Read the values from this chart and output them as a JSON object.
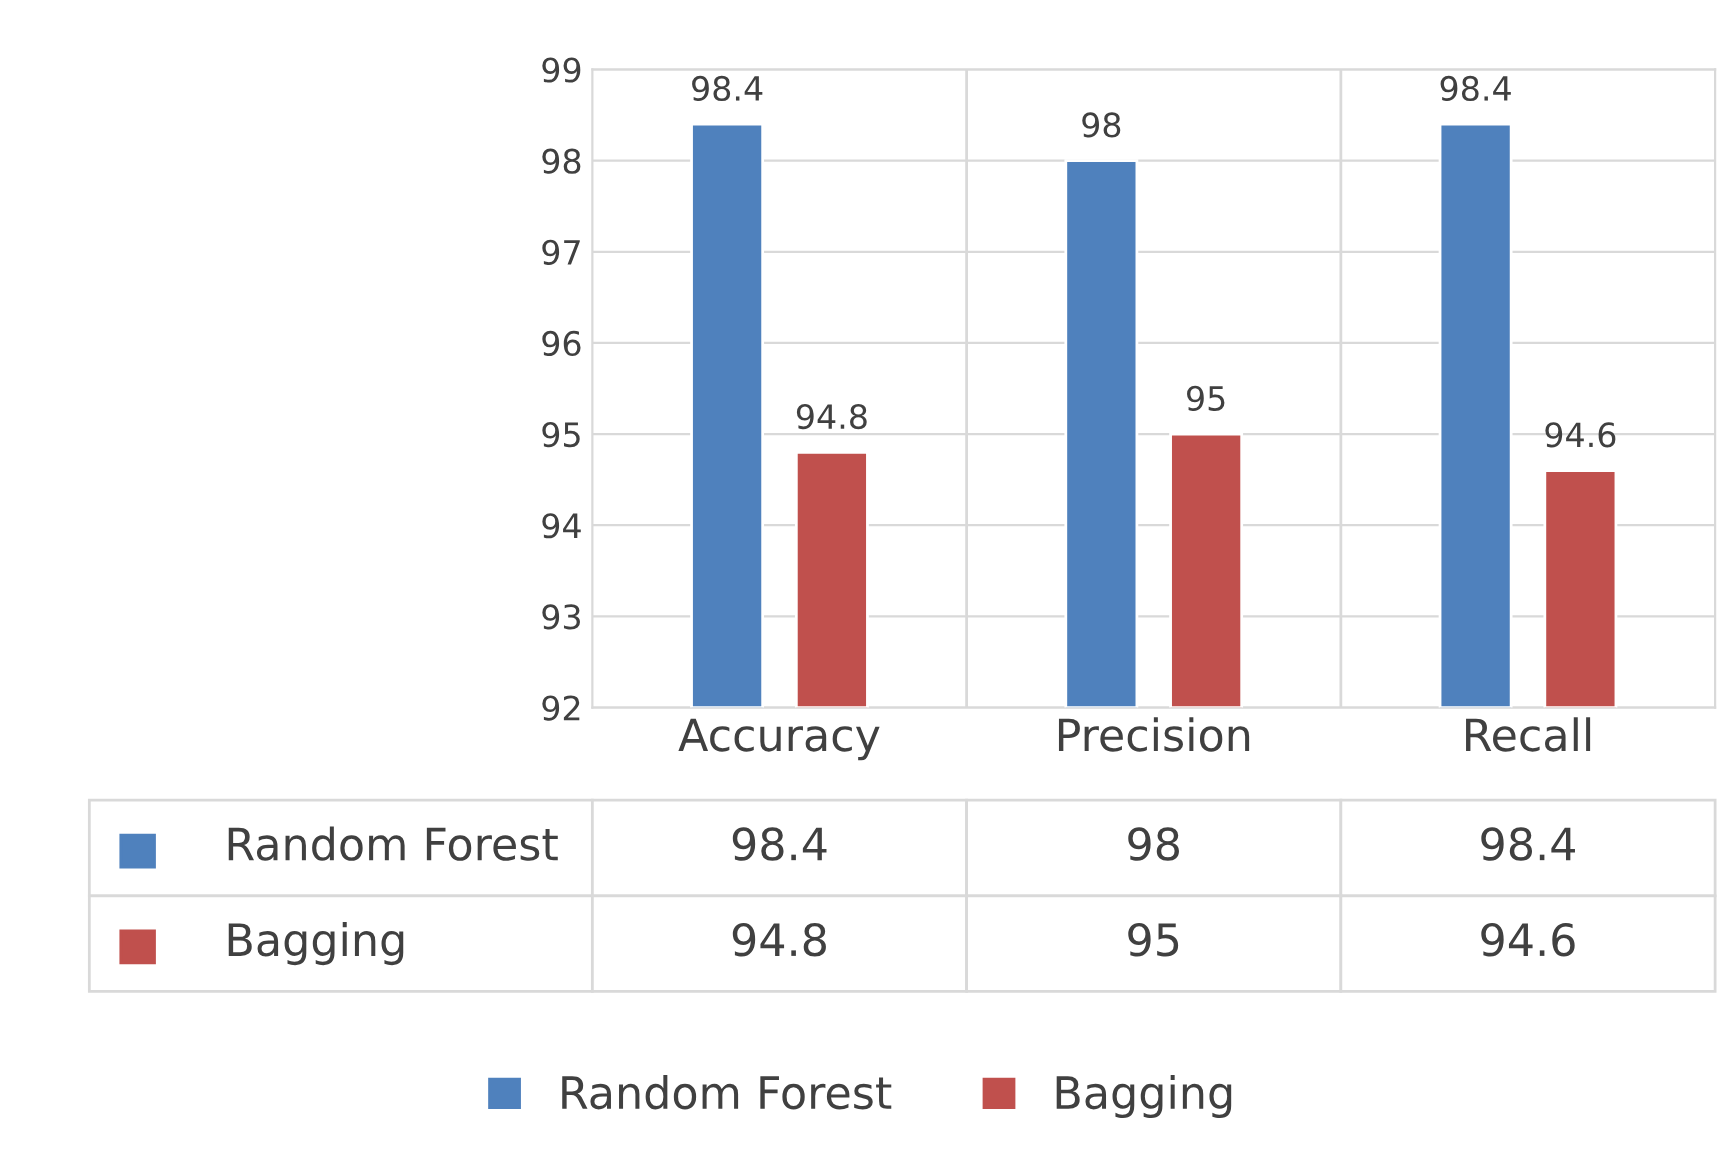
{
  "chart_data": {
    "type": "bar",
    "categories": [
      "Accuracy",
      "Precision",
      "Recall"
    ],
    "series": [
      {
        "name": "Random Forest",
        "color": "#4f81bd",
        "values": [
          98.4,
          98,
          98.4
        ]
      },
      {
        "name": "Bagging",
        "color": "#c0504d",
        "values": [
          94.8,
          95,
          94.6
        ]
      }
    ],
    "ylim": [
      92,
      99
    ],
    "yticks": [
      92,
      93,
      94,
      95,
      96,
      97,
      98,
      99
    ],
    "grid": "y",
    "legend": "bottom",
    "data_labels": true,
    "annotations": [
      "98.4",
      "98",
      "98.4",
      "94.8",
      "95",
      "94.6"
    ]
  }
}
